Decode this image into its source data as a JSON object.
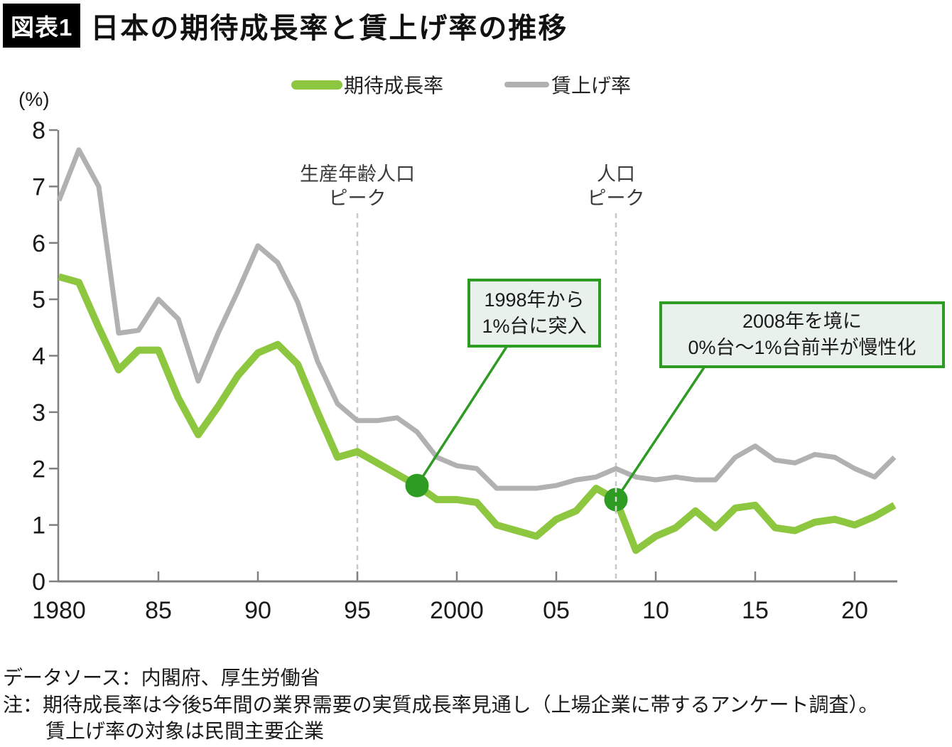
{
  "header": {
    "tag": "図表1",
    "title": "日本の期待成長率と賃上げ率の推移"
  },
  "unit_label": "(%)",
  "legend": {
    "items": [
      {
        "label": "期待成長率",
        "color": "#8dc63f"
      },
      {
        "label": "賃上げ率",
        "color": "#b1b1b1"
      }
    ]
  },
  "chart_data": {
    "type": "line",
    "title": "日本の期待成長率と賃上げ率の推移",
    "ylabel": "(%)",
    "xlabel": "",
    "ylim": [
      0,
      8
    ],
    "xlim": [
      1980,
      2022.15
    ],
    "grid": false,
    "legend_position": "top",
    "x": [
      1980,
      1981,
      1982,
      1983,
      1984,
      1985,
      1986,
      1987,
      1988,
      1989,
      1990,
      1991,
      1992,
      1993,
      1994,
      1995,
      1996,
      1997,
      1998,
      1999,
      2000,
      2001,
      2002,
      2003,
      2004,
      2005,
      2006,
      2007,
      2008,
      2009,
      2010,
      2011,
      2012,
      2013,
      2014,
      2015,
      2016,
      2017,
      2018,
      2019,
      2020,
      2021,
      2022
    ],
    "series": [
      {
        "id": "expected-growth-line",
        "name": "期待成長率",
        "color": "#8dc63f",
        "width": 10,
        "values": [
          5.4,
          5.3,
          4.5,
          3.75,
          4.1,
          4.1,
          3.25,
          2.6,
          3.1,
          3.65,
          4.05,
          4.2,
          3.85,
          3.0,
          2.2,
          2.3,
          2.1,
          1.9,
          1.7,
          1.45,
          1.45,
          1.4,
          1.0,
          0.9,
          0.8,
          1.1,
          1.25,
          1.65,
          1.45,
          0.55,
          0.8,
          0.95,
          1.25,
          0.95,
          1.3,
          1.35,
          0.95,
          0.9,
          1.05,
          1.1,
          1.0,
          1.15,
          1.35
        ]
      },
      {
        "id": "wage-hike-line",
        "name": "賃上げ率",
        "color": "#b1b1b1",
        "width": 7,
        "values": [
          6.75,
          7.65,
          7.0,
          4.4,
          4.45,
          5.0,
          4.65,
          3.55,
          4.4,
          5.15,
          5.95,
          5.65,
          4.95,
          3.9,
          3.15,
          2.85,
          2.85,
          2.9,
          2.65,
          2.2,
          2.05,
          2.0,
          1.65,
          1.65,
          1.65,
          1.7,
          1.8,
          1.85,
          2.0,
          1.85,
          1.8,
          1.85,
          1.8,
          1.8,
          2.2,
          2.4,
          2.15,
          2.1,
          2.25,
          2.2,
          2.0,
          1.85,
          2.2
        ]
      }
    ],
    "xticks": {
      "years": [
        1980,
        1985,
        1990,
        1995,
        2000,
        2005,
        2010,
        2015,
        2020
      ],
      "labels": [
        "1980",
        "85",
        "90",
        "95",
        "2000",
        "05",
        "10",
        "15",
        "20"
      ]
    },
    "yticks": [
      0,
      1,
      2,
      3,
      4,
      5,
      6,
      7,
      8
    ],
    "vlines": [
      {
        "year": 1995,
        "label": "生産年齢人口ピーク"
      },
      {
        "year": 2008,
        "label": "人口ピーク"
      }
    ],
    "markers": [
      {
        "year": 1998,
        "value": 1.7
      },
      {
        "year": 2008,
        "value": 1.45
      }
    ]
  },
  "annotations": {
    "peak1": {
      "line1": "生産年齢人口",
      "line2": "ピーク"
    },
    "peak2": {
      "line1": "人口",
      "line2": "ピーク"
    },
    "callout1": {
      "line1": "1998年から",
      "line2": "1%台に突入"
    },
    "callout2": {
      "line1": "2008年を境に",
      "line2": "0%台～1%台前半が慢性化"
    }
  },
  "footer": {
    "source": "データソース：内閣府、厚生労働省",
    "note1": "注：期待成長率は今後5年間の業界需要の実質成長率見通し（上場企業に帯するアンケート調査）。",
    "note2": "賃上げ率の対象は民間主要企業"
  },
  "colors": {
    "growth_line": "#8dc63f",
    "wage_line": "#b1b1b1",
    "accent_dark_green": "#2e9b23",
    "callout_fill": "#e9f1ec",
    "dashed_line": "#c9c9c9",
    "axis": "#808080"
  }
}
